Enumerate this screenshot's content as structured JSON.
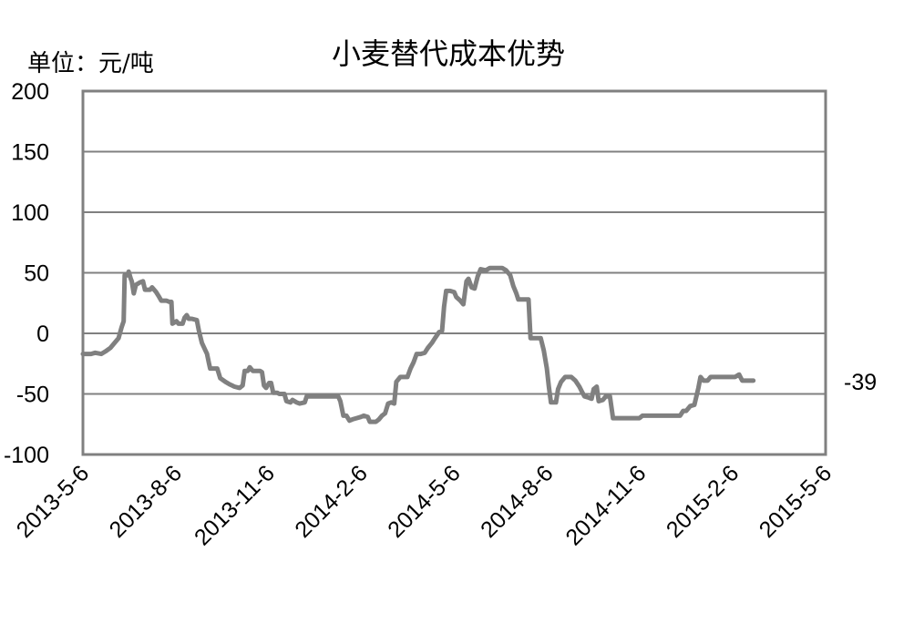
{
  "chart_data": {
    "type": "line",
    "title": "小麦替代成本优势",
    "unit_label": "单位：元/吨",
    "ylim": [
      -100,
      200
    ],
    "yticks": [
      200,
      150,
      100,
      50,
      0,
      -50,
      -100
    ],
    "xlim": [
      "2013-05-06",
      "2015-05-06"
    ],
    "xtick_labels": [
      "2013-5-6",
      "2013-8-6",
      "2013-11-6",
      "2014-2-6",
      "2014-5-6",
      "2014-8-6",
      "2014-11-6",
      "2015-2-6",
      "2015-5-6"
    ],
    "grid": true,
    "legend": "none",
    "end_label": "-39",
    "line_color": "#808080",
    "series": [
      {
        "points": [
          [
            "2013-05-06",
            -17
          ],
          [
            "2013-05-14",
            -17
          ],
          [
            "2013-05-18",
            -16
          ],
          [
            "2013-05-24",
            -17
          ],
          [
            "2013-05-28",
            -15
          ],
          [
            "2013-06-02",
            -12
          ],
          [
            "2013-06-06",
            -8
          ],
          [
            "2013-06-10",
            -4
          ],
          [
            "2013-06-13",
            5
          ],
          [
            "2013-06-15",
            10
          ],
          [
            "2013-06-16",
            48
          ],
          [
            "2013-06-19",
            48
          ],
          [
            "2013-06-20",
            51
          ],
          [
            "2013-06-22",
            45
          ],
          [
            "2013-06-23",
            43
          ],
          [
            "2013-06-25",
            33
          ],
          [
            "2013-06-27",
            40
          ],
          [
            "2013-07-01",
            42
          ],
          [
            "2013-07-04",
            43
          ],
          [
            "2013-07-06",
            36
          ],
          [
            "2013-07-11",
            36
          ],
          [
            "2013-07-13",
            38
          ],
          [
            "2013-07-17",
            34
          ],
          [
            "2013-07-20",
            30
          ],
          [
            "2013-07-22",
            27
          ],
          [
            "2013-07-27",
            27
          ],
          [
            "2013-07-30",
            26
          ],
          [
            "2013-08-01",
            26
          ],
          [
            "2013-08-02",
            8
          ],
          [
            "2013-08-06",
            10
          ],
          [
            "2013-08-08",
            8
          ],
          [
            "2013-08-12",
            8
          ],
          [
            "2013-08-14",
            13
          ],
          [
            "2013-08-16",
            15
          ],
          [
            "2013-08-18",
            12
          ],
          [
            "2013-08-21",
            12
          ],
          [
            "2013-08-26",
            11
          ],
          [
            "2013-08-28",
            2
          ],
          [
            "2013-08-31",
            -8
          ],
          [
            "2013-09-05",
            -17
          ],
          [
            "2013-09-07",
            -25
          ],
          [
            "2013-09-08",
            -29
          ],
          [
            "2013-09-12",
            -29
          ],
          [
            "2013-09-15",
            -29
          ],
          [
            "2013-09-18",
            -37
          ],
          [
            "2013-09-23",
            -40
          ],
          [
            "2013-09-27",
            -42
          ],
          [
            "2013-10-02",
            -44
          ],
          [
            "2013-10-07",
            -45
          ],
          [
            "2013-10-10",
            -43
          ],
          [
            "2013-10-12",
            -31
          ],
          [
            "2013-10-15",
            -31
          ],
          [
            "2013-10-17",
            -28
          ],
          [
            "2013-10-20",
            -31
          ],
          [
            "2013-10-24",
            -31
          ],
          [
            "2013-10-27",
            -31
          ],
          [
            "2013-10-29",
            -32
          ],
          [
            "2013-10-31",
            -43
          ],
          [
            "2013-11-02",
            -45
          ],
          [
            "2013-11-05",
            -41
          ],
          [
            "2013-11-07",
            -41
          ],
          [
            "2013-11-09",
            -49
          ],
          [
            "2013-11-13",
            -49
          ],
          [
            "2013-11-15",
            -50
          ],
          [
            "2013-11-20",
            -50
          ],
          [
            "2013-11-22",
            -56
          ],
          [
            "2013-11-26",
            -57
          ],
          [
            "2013-11-28",
            -55
          ],
          [
            "2013-12-02",
            -57
          ],
          [
            "2013-12-05",
            -58
          ],
          [
            "2013-12-10",
            -57
          ],
          [
            "2013-12-12",
            -52
          ],
          [
            "2013-12-20",
            -52
          ],
          [
            "2014-01-01",
            -52
          ],
          [
            "2014-01-12",
            -52
          ],
          [
            "2014-01-14",
            -56
          ],
          [
            "2014-01-17",
            -68
          ],
          [
            "2014-01-20",
            -68
          ],
          [
            "2014-01-23",
            -72
          ],
          [
            "2014-01-26",
            -71
          ],
          [
            "2014-01-30",
            -70
          ],
          [
            "2014-02-03",
            -69
          ],
          [
            "2014-02-06",
            -68
          ],
          [
            "2014-02-10",
            -69
          ],
          [
            "2014-02-12",
            -73
          ],
          [
            "2014-02-18",
            -73
          ],
          [
            "2014-02-21",
            -71
          ],
          [
            "2014-02-24",
            -68
          ],
          [
            "2014-02-27",
            -66
          ],
          [
            "2014-03-02",
            -58
          ],
          [
            "2014-03-05",
            -57
          ],
          [
            "2014-03-08",
            -58
          ],
          [
            "2014-03-10",
            -40
          ],
          [
            "2014-03-14",
            -36
          ],
          [
            "2014-03-17",
            -36
          ],
          [
            "2014-03-21",
            -36
          ],
          [
            "2014-03-24",
            -29
          ],
          [
            "2014-03-27",
            -24
          ],
          [
            "2014-03-30",
            -17
          ],
          [
            "2014-04-03",
            -17
          ],
          [
            "2014-04-07",
            -16
          ],
          [
            "2014-04-10",
            -12
          ],
          [
            "2014-04-14",
            -8
          ],
          [
            "2014-04-17",
            -4
          ],
          [
            "2014-04-21",
            1
          ],
          [
            "2014-04-24",
            2
          ],
          [
            "2014-04-26",
            22
          ],
          [
            "2014-04-28",
            35
          ],
          [
            "2014-05-02",
            35
          ],
          [
            "2014-05-06",
            34
          ],
          [
            "2014-05-08",
            30
          ],
          [
            "2014-05-12",
            27
          ],
          [
            "2014-05-15",
            24
          ],
          [
            "2014-05-18",
            43
          ],
          [
            "2014-05-20",
            45
          ],
          [
            "2014-05-23",
            38
          ],
          [
            "2014-05-26",
            37
          ],
          [
            "2014-05-29",
            47
          ],
          [
            "2014-06-01",
            53
          ],
          [
            "2014-06-06",
            52
          ],
          [
            "2014-06-10",
            54
          ],
          [
            "2014-06-14",
            54
          ],
          [
            "2014-06-22",
            54
          ],
          [
            "2014-06-26",
            52
          ],
          [
            "2014-06-30",
            48
          ],
          [
            "2014-07-03",
            39
          ],
          [
            "2014-07-06",
            33
          ],
          [
            "2014-07-08",
            28
          ],
          [
            "2014-07-15",
            28
          ],
          [
            "2014-07-18",
            28
          ],
          [
            "2014-07-20",
            -4
          ],
          [
            "2014-07-27",
            -4
          ],
          [
            "2014-07-30",
            -4
          ],
          [
            "2014-08-02",
            -14
          ],
          [
            "2014-08-05",
            -29
          ],
          [
            "2014-08-07",
            -44
          ],
          [
            "2014-08-09",
            -57
          ],
          [
            "2014-08-14",
            -57
          ],
          [
            "2014-08-16",
            -46
          ],
          [
            "2014-08-19",
            -40
          ],
          [
            "2014-08-23",
            -36
          ],
          [
            "2014-08-29",
            -36
          ],
          [
            "2014-09-02",
            -39
          ],
          [
            "2014-09-06",
            -44
          ],
          [
            "2014-09-09",
            -49
          ],
          [
            "2014-09-11",
            -52
          ],
          [
            "2014-09-15",
            -53
          ],
          [
            "2014-09-18",
            -54
          ],
          [
            "2014-09-20",
            -46
          ],
          [
            "2014-09-23",
            -44
          ],
          [
            "2014-09-25",
            -56
          ],
          [
            "2014-09-29",
            -55
          ],
          [
            "2014-10-02",
            -52
          ],
          [
            "2014-10-06",
            -52
          ],
          [
            "2014-10-09",
            -70
          ],
          [
            "2014-10-15",
            -70
          ],
          [
            "2014-10-25",
            -70
          ],
          [
            "2014-11-04",
            -70
          ],
          [
            "2014-11-07",
            -68
          ],
          [
            "2014-11-20",
            -68
          ],
          [
            "2014-12-05",
            -68
          ],
          [
            "2014-12-14",
            -68
          ],
          [
            "2014-12-17",
            -64
          ],
          [
            "2014-12-20",
            -64
          ],
          [
            "2014-12-24",
            -60
          ],
          [
            "2014-12-28",
            -59
          ],
          [
            "2015-01-01",
            -45
          ],
          [
            "2015-01-03",
            -36
          ],
          [
            "2015-01-06",
            -39
          ],
          [
            "2015-01-10",
            -39
          ],
          [
            "2015-01-13",
            -36
          ],
          [
            "2015-01-20",
            -36
          ],
          [
            "2015-01-30",
            -36
          ],
          [
            "2015-02-06",
            -36
          ],
          [
            "2015-02-10",
            -34
          ],
          [
            "2015-02-13",
            -39
          ],
          [
            "2015-02-20",
            -39
          ],
          [
            "2015-02-24",
            -39
          ]
        ]
      }
    ]
  }
}
